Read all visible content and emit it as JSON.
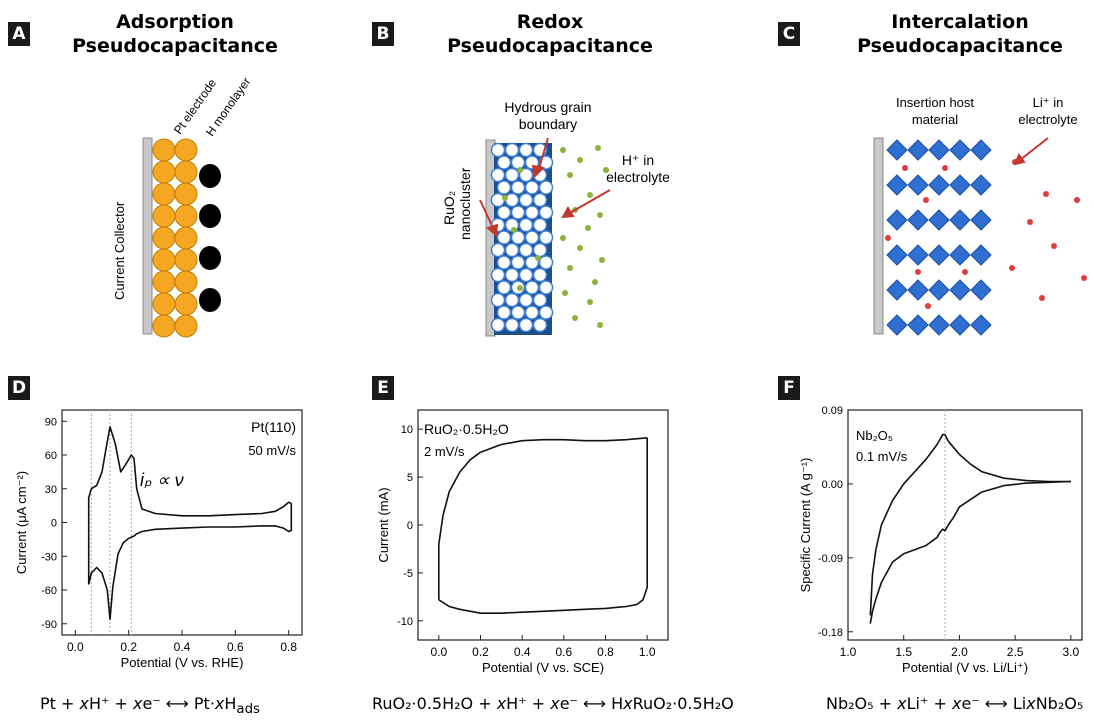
{
  "panels": {
    "a": {
      "letter": "A",
      "title_line1": "Adsorption",
      "title_line2": "Pseudocapacitance",
      "labels": {
        "collector": "Current Collector",
        "pt": "Pt electrode",
        "h": "H monolayer"
      }
    },
    "b": {
      "letter": "B",
      "title_line1": "Redox",
      "title_line2": "Pseudocapacitance",
      "labels": {
        "grain1": "Hydrous grain",
        "grain2": "boundary",
        "h_in": "H⁺ in",
        "electrolyte": "electrolyte",
        "ruo2": "RuO₂",
        "nano": "nanocluster"
      }
    },
    "c": {
      "letter": "C",
      "title_line1": "Intercalation",
      "title_line2": "Pseudocapacitance",
      "labels": {
        "host1": "Insertion host",
        "host2": "material",
        "li1": "Li⁺ in",
        "li2": "electrolyte"
      }
    },
    "d": {
      "letter": "D"
    },
    "e": {
      "letter": "E"
    },
    "f": {
      "letter": "F"
    }
  },
  "chart_data": [
    {
      "type": "line",
      "panel": "D",
      "annotation1": "Pt(110)",
      "annotation2": "50 mV/s",
      "annotation3": "iₚ ∝ ν",
      "xlabel": "Potential (V vs. RHE)",
      "ylabel": "Current (μA cm⁻²)",
      "xlim": [
        -0.05,
        0.85
      ],
      "ylim": [
        -100,
        100
      ],
      "xticks": [
        "0.0",
        "0.2",
        "0.4",
        "0.6",
        "0.8"
      ],
      "yticks": [
        "90",
        "60",
        "30",
        "0",
        "-30",
        "-60",
        "-90"
      ],
      "dashed_x": [
        0.06,
        0.13,
        0.21
      ],
      "series": [
        {
          "x": [
            0.05,
            0.05,
            0.06,
            0.08,
            0.1,
            0.12,
            0.13,
            0.15,
            0.17,
            0.19,
            0.21,
            0.22,
            0.23,
            0.25,
            0.3,
            0.4,
            0.5,
            0.6,
            0.7,
            0.75,
            0.78,
            0.8,
            0.81
          ],
          "y": [
            -55,
            22,
            30,
            33,
            45,
            72,
            85,
            70,
            45,
            52,
            60,
            57,
            30,
            12,
            8,
            6,
            6,
            7,
            8,
            10,
            14,
            18,
            17
          ]
        },
        {
          "x": [
            0.81,
            0.81,
            0.8,
            0.78,
            0.75,
            0.7,
            0.6,
            0.5,
            0.4,
            0.3,
            0.25,
            0.23,
            0.22,
            0.2,
            0.18,
            0.16,
            0.14,
            0.13,
            0.12,
            0.1,
            0.08,
            0.06,
            0.05
          ],
          "y": [
            17,
            -7,
            -8,
            -5,
            -3,
            -3,
            -4,
            -4,
            -5,
            -6,
            -8,
            -10,
            -12,
            -14,
            -18,
            -28,
            -58,
            -86,
            -60,
            -45,
            -40,
            -45,
            -55
          ]
        }
      ]
    },
    {
      "type": "line",
      "panel": "E",
      "annotation1": "RuO₂·0.5H₂O",
      "annotation2": "2 mV/s",
      "xlabel": "Potential (V vs. SCE)",
      "ylabel": "Current (mA)",
      "xlim": [
        -0.1,
        1.1
      ],
      "ylim": [
        -12,
        12
      ],
      "xticks": [
        "0.0",
        "0.2",
        "0.4",
        "0.6",
        "0.8",
        "1.0"
      ],
      "yticks": [
        "10",
        "5",
        "0",
        "-5",
        "-10"
      ],
      "series": [
        {
          "x": [
            0.0,
            0.0,
            0.02,
            0.05,
            0.1,
            0.15,
            0.2,
            0.3,
            0.4,
            0.5,
            0.6,
            0.7,
            0.8,
            0.9,
            1.0
          ],
          "y": [
            -7.8,
            -2,
            1,
            3.5,
            5.5,
            6.8,
            7.6,
            8.4,
            8.8,
            8.9,
            8.9,
            8.8,
            8.8,
            8.9,
            9.1
          ]
        },
        {
          "x": [
            1.0,
            1.0,
            0.98,
            0.95,
            0.9,
            0.85,
            0.8,
            0.7,
            0.6,
            0.5,
            0.4,
            0.3,
            0.2,
            0.1,
            0.05,
            0.0
          ],
          "y": [
            9.1,
            -6.5,
            -7.8,
            -8.3,
            -8.5,
            -8.6,
            -8.7,
            -8.8,
            -8.9,
            -9.0,
            -9.1,
            -9.2,
            -9.2,
            -8.8,
            -8.5,
            -7.8
          ]
        }
      ]
    },
    {
      "type": "line",
      "panel": "F",
      "annotation1": "Nb₂O₅",
      "annotation2": "0.1 mV/s",
      "xlabel": "Potential (V vs. Li/Li⁺)",
      "ylabel": "Specific Current (A g⁻¹)",
      "xlim": [
        1.0,
        3.1
      ],
      "ylim": [
        -0.19,
        0.09
      ],
      "xticks": [
        "1.0",
        "1.5",
        "2.0",
        "2.5",
        "3.0"
      ],
      "yticks": [
        "0.09",
        "0.00",
        "-0.09",
        "-0.18"
      ],
      "dashed_x": [
        1.87
      ],
      "series": [
        {
          "x": [
            1.2,
            1.22,
            1.25,
            1.3,
            1.4,
            1.5,
            1.6,
            1.7,
            1.8,
            1.85,
            1.87,
            1.9,
            2.0,
            2.1,
            2.2,
            2.4,
            2.6,
            2.8,
            3.0
          ],
          "y": [
            -0.16,
            -0.11,
            -0.08,
            -0.05,
            -0.02,
            0.0,
            0.015,
            0.03,
            0.048,
            0.06,
            0.06,
            0.052,
            0.036,
            0.024,
            0.015,
            0.007,
            0.004,
            0.003,
            0.003
          ]
        },
        {
          "x": [
            3.0,
            2.8,
            2.6,
            2.4,
            2.2,
            2.0,
            1.95,
            1.9,
            1.87,
            1.85,
            1.82,
            1.8,
            1.7,
            1.6,
            1.5,
            1.4,
            1.3,
            1.25,
            1.22,
            1.2
          ],
          "y": [
            0.003,
            0.002,
            0.001,
            -0.002,
            -0.01,
            -0.028,
            -0.04,
            -0.05,
            -0.057,
            -0.055,
            -0.06,
            -0.065,
            -0.075,
            -0.08,
            -0.085,
            -0.095,
            -0.12,
            -0.14,
            -0.155,
            -0.17
          ]
        }
      ]
    }
  ],
  "equations": {
    "d": {
      "a": "Pt + ",
      "x1": "x",
      "b": "H⁺ + ",
      "x2": "x",
      "c": "e⁻ ⟷ Pt·",
      "x3": "x",
      "d": "H",
      "sub": "ads"
    },
    "e": {
      "a": "RuO₂·0.5H₂O + ",
      "x1": "x",
      "b": "H⁺ + ",
      "x2": "x",
      "c": "e⁻ ⟷ H",
      "x3": "x",
      "d": "RuO₂·0.5H₂O"
    },
    "f": {
      "a": "Nb₂O₅ + ",
      "x1": "x",
      "b": "Li⁺ + ",
      "x2": "x",
      "c": "e⁻ ⟷ Li",
      "x3": "x",
      "d": "Nb₂O₅"
    }
  },
  "colors": {
    "pt": "#f5a623",
    "h_atom": "#000000",
    "ruo2": "#1f4e8c",
    "proton": "#8db33a",
    "li": "#e03c3c",
    "host": "#2e6fd1",
    "arrow": "#c0392b"
  }
}
